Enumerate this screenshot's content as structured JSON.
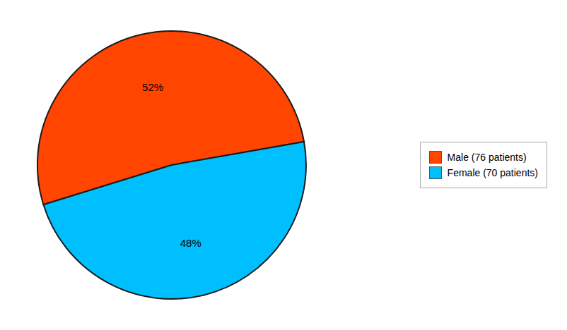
{
  "chart_data": {
    "type": "pie",
    "categories": [
      "Male (76 patients)",
      "Female (70 patients)"
    ],
    "values": [
      52,
      48
    ],
    "value_labels": [
      "52%",
      "48%"
    ],
    "colors": [
      "#FF4500",
      "#00BFFF"
    ],
    "data_labels": true,
    "legend": "right"
  }
}
